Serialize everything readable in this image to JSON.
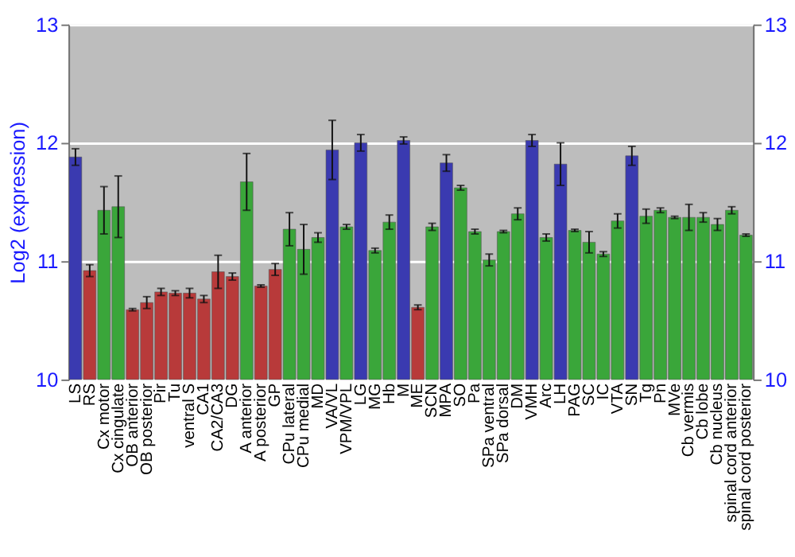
{
  "chart_data": {
    "type": "bar",
    "ylabel": "Log2 (expression)",
    "categories": [
      "LS",
      "RS",
      "Cx motor",
      "Cx cingulate",
      "OB anterior",
      "OB posterior",
      "Pir",
      "Tu",
      "ventral S",
      "CA1",
      "CA2/CA3",
      "DG",
      "A anterior",
      "A posterior",
      "GP",
      "CPu lateral",
      "CPu medial",
      "MD",
      "VA/VL",
      "VPM/VPL",
      "LG",
      "MG",
      "Hb",
      "M",
      "ME",
      "SCN",
      "MPA",
      "SO",
      "Pa",
      "SPa ventral",
      "SPa dorsal",
      "DM",
      "VMH",
      "Arc",
      "LH",
      "PAG",
      "SC",
      "IC",
      "VTA",
      "SN",
      "Tg",
      "Pn",
      "MVe",
      "Cb vermis",
      "Cb lobe",
      "Cb nucleus",
      "spinal cord anterior",
      "spinal cord posterior"
    ],
    "values": [
      11.88,
      10.92,
      11.43,
      11.46,
      10.59,
      10.65,
      10.74,
      10.73,
      10.73,
      10.68,
      10.91,
      10.87,
      11.67,
      10.79,
      10.93,
      11.27,
      11.1,
      11.2,
      11.94,
      11.29,
      12.0,
      11.09,
      11.33,
      12.02,
      10.61,
      11.29,
      11.83,
      11.62,
      11.25,
      11.01,
      11.25,
      11.4,
      12.02,
      11.2,
      11.82,
      11.26,
      11.16,
      11.06,
      11.34,
      11.89,
      11.38,
      11.43,
      11.37,
      11.37,
      11.37,
      11.31,
      11.43,
      11.22
    ],
    "errors": [
      0.07,
      0.05,
      0.2,
      0.26,
      0.01,
      0.05,
      0.03,
      0.02,
      0.04,
      0.03,
      0.14,
      0.03,
      0.24,
      0.01,
      0.05,
      0.14,
      0.21,
      0.04,
      0.25,
      0.02,
      0.07,
      0.02,
      0.06,
      0.03,
      0.02,
      0.03,
      0.07,
      0.02,
      0.02,
      0.05,
      0.01,
      0.05,
      0.05,
      0.03,
      0.18,
      0.01,
      0.09,
      0.02,
      0.06,
      0.08,
      0.06,
      0.02,
      0.01,
      0.11,
      0.04,
      0.05,
      0.03,
      0.01
    ],
    "colors": [
      "#3a3ab0",
      "#b83a3a",
      "#3aa63a",
      "#3aa63a",
      "#b83a3a",
      "#b83a3a",
      "#b83a3a",
      "#b83a3a",
      "#b83a3a",
      "#b83a3a",
      "#b83a3a",
      "#b83a3a",
      "#3aa63a",
      "#b83a3a",
      "#b83a3a",
      "#3aa63a",
      "#3aa63a",
      "#3aa63a",
      "#3a3ab0",
      "#3aa63a",
      "#3a3ab0",
      "#3aa63a",
      "#3aa63a",
      "#3a3ab0",
      "#b83a3a",
      "#3aa63a",
      "#3a3ab0",
      "#3aa63a",
      "#3aa63a",
      "#3aa63a",
      "#3aa63a",
      "#3aa63a",
      "#3a3ab0",
      "#3aa63a",
      "#3a3ab0",
      "#3aa63a",
      "#3aa63a",
      "#3aa63a",
      "#3aa63a",
      "#3a3ab0",
      "#3aa63a",
      "#3aa63a",
      "#3aa63a",
      "#3aa63a",
      "#3aa63a",
      "#3aa63a",
      "#3aa63a",
      "#3aa63a"
    ],
    "ylim": [
      10,
      13
    ],
    "yticks": [
      10,
      11,
      12,
      13
    ],
    "y2lim": [
      10,
      13
    ],
    "y2ticks": [
      10,
      11,
      12,
      13
    ],
    "grid": "y"
  }
}
